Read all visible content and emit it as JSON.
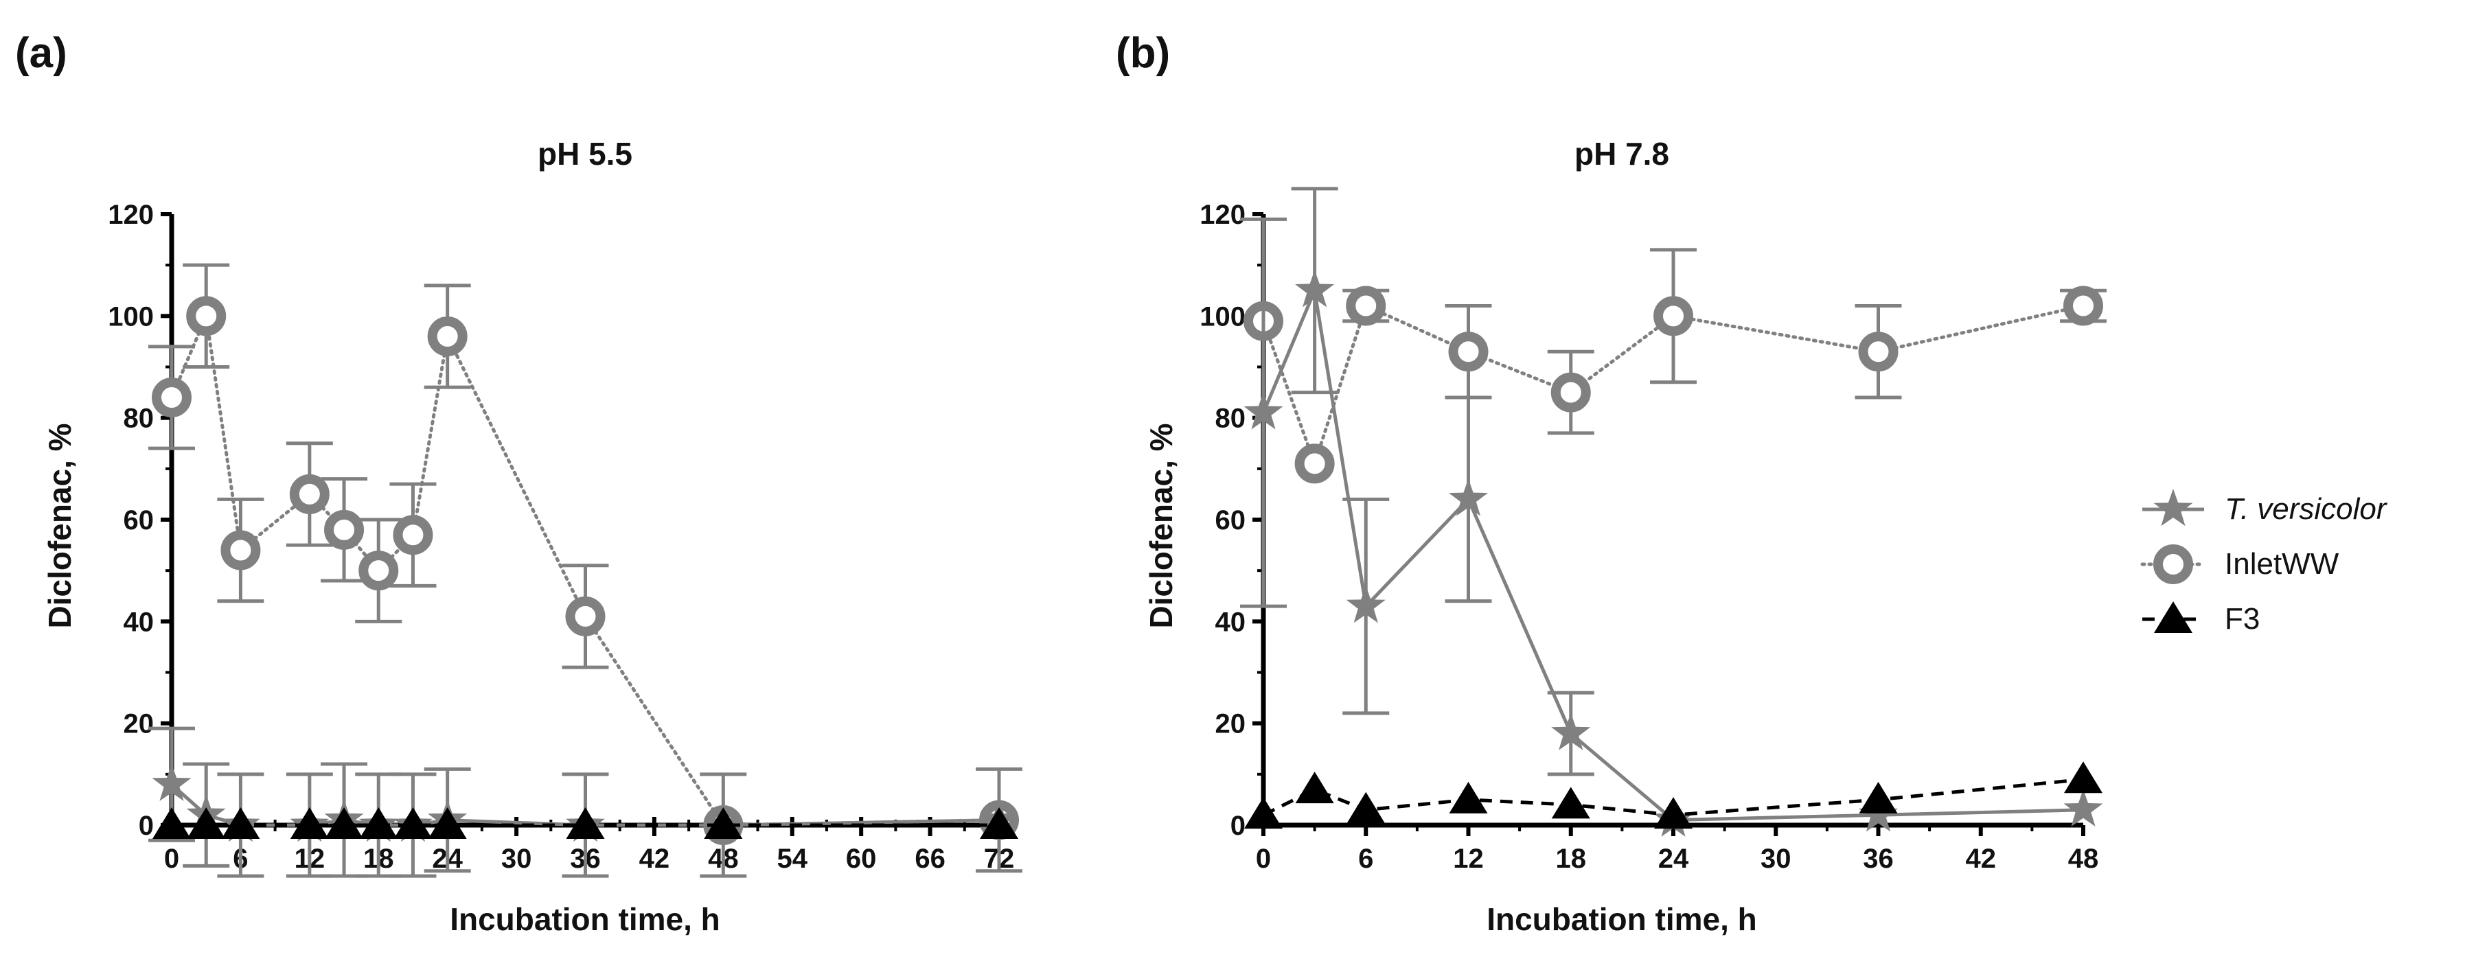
{
  "colors": {
    "gray": "#808080",
    "black": "#000000",
    "axis": "#000000"
  },
  "legend": [
    {
      "name": "T. versicolor",
      "italic": true,
      "marker": "star",
      "line": "solid",
      "color": "#808080"
    },
    {
      "name": "InletWW",
      "italic": false,
      "marker": "ring",
      "line": "dotted",
      "color": "#808080"
    },
    {
      "name": "F3",
      "italic": false,
      "marker": "triangle",
      "line": "dashed",
      "color": "#000000"
    }
  ],
  "chart_data": [
    {
      "type": "line",
      "panel_label": "(a)",
      "title": "pH 5.5",
      "xlabel": "Incubation time, h",
      "ylabel": "Diclofenac, %",
      "xlim": [
        0,
        72
      ],
      "ylim": [
        0,
        120
      ],
      "xticks": [
        0,
        6,
        12,
        18,
        24,
        30,
        36,
        42,
        48,
        54,
        60,
        66,
        72
      ],
      "yticks": [
        0,
        20,
        40,
        60,
        80,
        100,
        120
      ],
      "series": [
        {
          "name": "T. versicolor",
          "x": [
            0,
            3,
            6,
            12,
            15,
            18,
            21,
            24,
            36,
            48,
            72
          ],
          "y": [
            8,
            2,
            0,
            0,
            1,
            0,
            0,
            1,
            0,
            0,
            1
          ],
          "err": [
            11,
            10,
            10,
            10,
            11,
            10,
            10,
            10,
            10,
            10,
            10
          ]
        },
        {
          "name": "InletWW",
          "x": [
            0,
            3,
            6,
            12,
            15,
            18,
            21,
            24,
            36,
            48,
            72
          ],
          "y": [
            84,
            100,
            54,
            65,
            58,
            50,
            57,
            96,
            41,
            0,
            1
          ],
          "err": [
            10,
            10,
            10,
            10,
            10,
            10,
            10,
            10,
            10,
            0,
            0
          ]
        },
        {
          "name": "F3",
          "x": [
            0,
            3,
            6,
            12,
            15,
            18,
            21,
            24,
            36,
            48,
            72
          ],
          "y": [
            0,
            0,
            0,
            0,
            0,
            0,
            0,
            0,
            0,
            0,
            0
          ],
          "err": [
            0,
            0,
            0,
            0,
            0,
            0,
            0,
            0,
            0,
            0,
            0
          ]
        }
      ]
    },
    {
      "type": "line",
      "panel_label": "(b)",
      "title": "pH 7.8",
      "xlabel": "Incubation time, h",
      "ylabel": "Diclofenac, %",
      "xlim": [
        0,
        48
      ],
      "ylim": [
        0,
        120
      ],
      "xticks": [
        0,
        6,
        12,
        18,
        24,
        30,
        36,
        42,
        48
      ],
      "yticks": [
        0,
        20,
        40,
        60,
        80,
        100,
        120
      ],
      "series": [
        {
          "name": "T. versicolor",
          "x": [
            0,
            3,
            6,
            12,
            18,
            24,
            36,
            48
          ],
          "y": [
            81,
            105,
            43,
            64,
            18,
            1,
            2,
            3
          ],
          "err": [
            38,
            20,
            21,
            20,
            8,
            0,
            0,
            0
          ]
        },
        {
          "name": "InletWW",
          "x": [
            0,
            3,
            6,
            12,
            18,
            24,
            36,
            48
          ],
          "y": [
            99,
            71,
            102,
            93,
            85,
            100,
            93,
            102
          ],
          "err": [
            0,
            0,
            3,
            9,
            8,
            13,
            9,
            3
          ]
        },
        {
          "name": "F3",
          "x": [
            0,
            3,
            6,
            12,
            18,
            24,
            36,
            48
          ],
          "y": [
            2,
            7,
            3,
            5,
            4,
            2,
            5,
            9
          ],
          "err": [
            0,
            0,
            0,
            0,
            0,
            0,
            0,
            0
          ]
        }
      ]
    }
  ]
}
